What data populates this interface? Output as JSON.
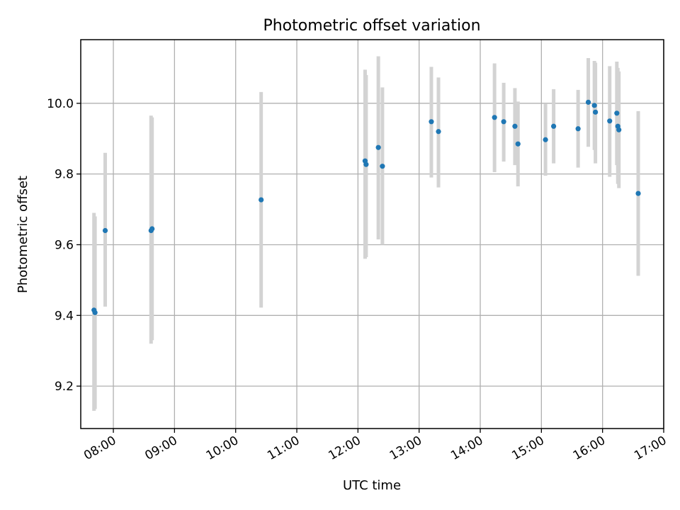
{
  "chart_data": {
    "type": "scatter",
    "title": "Photometric offset variation",
    "xlabel": "UTC time",
    "ylabel": "Photometric offset",
    "xlim": [
      "07:28",
      "17:00"
    ],
    "ylim": [
      9.08,
      10.18
    ],
    "x_ticks": [
      "08:00",
      "09:00",
      "10:00",
      "11:00",
      "12:00",
      "13:00",
      "14:00",
      "15:00",
      "16:00",
      "17:00"
    ],
    "y_ticks": [
      9.2,
      9.4,
      9.6,
      9.8,
      10.0
    ],
    "y_tick_labels": [
      "9.2",
      "9.4",
      "9.6",
      "9.8",
      "10.0"
    ],
    "grid": true,
    "marker_color": "#1f77b4",
    "errorbar_color": "#d3d3d3",
    "points": [
      {
        "x": "07:41",
        "y": 9.415,
        "ylow": 9.13,
        "yhigh": 9.69
      },
      {
        "x": "07:42",
        "y": 9.408,
        "ylow": 9.135,
        "yhigh": 9.68
      },
      {
        "x": "07:52",
        "y": 9.64,
        "ylow": 9.425,
        "yhigh": 9.86
      },
      {
        "x": "08:37",
        "y": 9.64,
        "ylow": 9.32,
        "yhigh": 9.965
      },
      {
        "x": "08:38",
        "y": 9.645,
        "ylow": 9.33,
        "yhigh": 9.96
      },
      {
        "x": "10:25",
        "y": 9.727,
        "ylow": 9.422,
        "yhigh": 10.032
      },
      {
        "x": "12:07",
        "y": 9.837,
        "ylow": 9.56,
        "yhigh": 10.095
      },
      {
        "x": "12:08",
        "y": 9.827,
        "ylow": 9.565,
        "yhigh": 10.08
      },
      {
        "x": "12:20",
        "y": 9.875,
        "ylow": 9.615,
        "yhigh": 10.133
      },
      {
        "x": "12:24",
        "y": 9.822,
        "ylow": 9.6,
        "yhigh": 10.045
      },
      {
        "x": "13:12",
        "y": 9.948,
        "ylow": 9.79,
        "yhigh": 10.103
      },
      {
        "x": "13:19",
        "y": 9.92,
        "ylow": 9.762,
        "yhigh": 10.073
      },
      {
        "x": "14:14",
        "y": 9.96,
        "ylow": 9.805,
        "yhigh": 10.113
      },
      {
        "x": "14:23",
        "y": 9.948,
        "ylow": 9.835,
        "yhigh": 10.058
      },
      {
        "x": "14:34",
        "y": 9.935,
        "ylow": 9.825,
        "yhigh": 10.043
      },
      {
        "x": "14:37",
        "y": 9.885,
        "ylow": 9.765,
        "yhigh": 10.005
      },
      {
        "x": "15:04",
        "y": 9.897,
        "ylow": 9.795,
        "yhigh": 9.998
      },
      {
        "x": "15:12",
        "y": 9.935,
        "ylow": 9.83,
        "yhigh": 10.04
      },
      {
        "x": "15:36",
        "y": 9.928,
        "ylow": 9.818,
        "yhigh": 10.038
      },
      {
        "x": "15:46",
        "y": 10.003,
        "ylow": 9.877,
        "yhigh": 10.128
      },
      {
        "x": "15:52",
        "y": 9.994,
        "ylow": 9.868,
        "yhigh": 10.12
      },
      {
        "x": "15:53",
        "y": 9.975,
        "ylow": 9.83,
        "yhigh": 10.115
      },
      {
        "x": "16:07",
        "y": 9.95,
        "ylow": 9.792,
        "yhigh": 10.105
      },
      {
        "x": "16:14",
        "y": 9.972,
        "ylow": 9.825,
        "yhigh": 10.118
      },
      {
        "x": "16:15",
        "y": 9.935,
        "ylow": 9.772,
        "yhigh": 10.1
      },
      {
        "x": "16:16",
        "y": 9.925,
        "ylow": 9.76,
        "yhigh": 10.09
      },
      {
        "x": "16:35",
        "y": 9.745,
        "ylow": 9.512,
        "yhigh": 9.978
      }
    ]
  }
}
